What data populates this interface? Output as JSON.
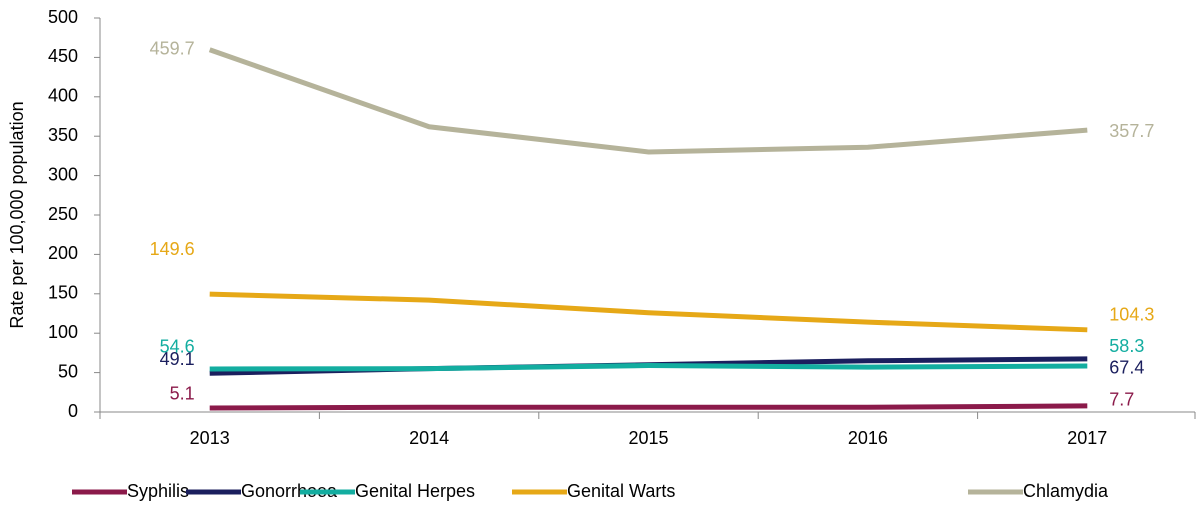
{
  "chart_data": {
    "type": "line",
    "y_label": "Rate per 100,000 population",
    "categories": [
      "2013",
      "2014",
      "2015",
      "2016",
      "2017"
    ],
    "ylim": [
      0,
      500
    ],
    "yticks": [
      0,
      50,
      100,
      150,
      200,
      250,
      300,
      350,
      400,
      450,
      500
    ],
    "series": [
      {
        "name": "Syphilis",
        "color": "#8b1a4a",
        "values": [
          5.1,
          6,
          6,
          6,
          7.7
        ],
        "value_labels": [
          "5.1",
          null,
          null,
          null,
          "7.7"
        ]
      },
      {
        "name": "Gonorrhoea",
        "color": "#1b1f5e",
        "values": [
          49.1,
          55,
          60,
          65,
          67.4
        ],
        "value_labels": [
          "49.1",
          null,
          null,
          null,
          "67.4"
        ]
      },
      {
        "name": "Genital Herpes",
        "color": "#13ada0",
        "values": [
          54.6,
          55,
          59,
          57,
          58.3
        ],
        "value_labels": [
          "54.6",
          null,
          null,
          null,
          "58.3"
        ]
      },
      {
        "name": "Genital Warts",
        "color": "#e6a817",
        "values": [
          149.6,
          142,
          126,
          114,
          104.3
        ],
        "value_labels": [
          "149.6",
          null,
          null,
          null,
          "104.3"
        ]
      },
      {
        "name": "Chlamydia",
        "color": "#b5b39a",
        "values": [
          459.7,
          362,
          330,
          336,
          357.7
        ],
        "value_labels": [
          "459.7",
          null,
          null,
          null,
          "357.7"
        ]
      }
    ]
  }
}
